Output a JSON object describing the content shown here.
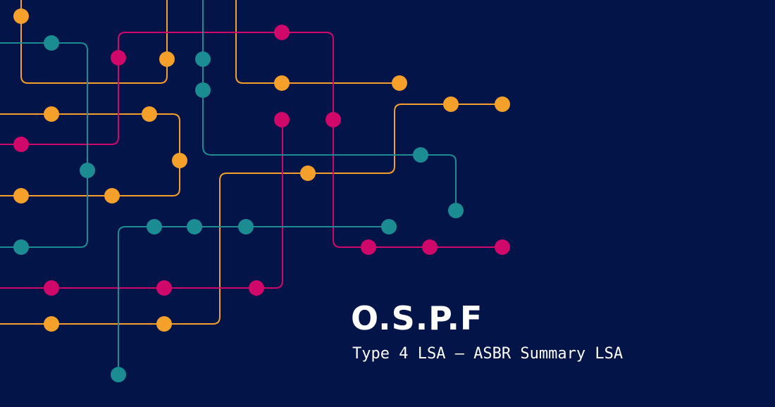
{
  "title": "O.S.P.F",
  "subtitle": "Type 4 LSA – ASBR Summary LSA",
  "colors": {
    "background": "#021448",
    "text": "#ffffff",
    "orange": "#f5a02a",
    "magenta": "#d0086a",
    "teal": "#1a8c92"
  }
}
